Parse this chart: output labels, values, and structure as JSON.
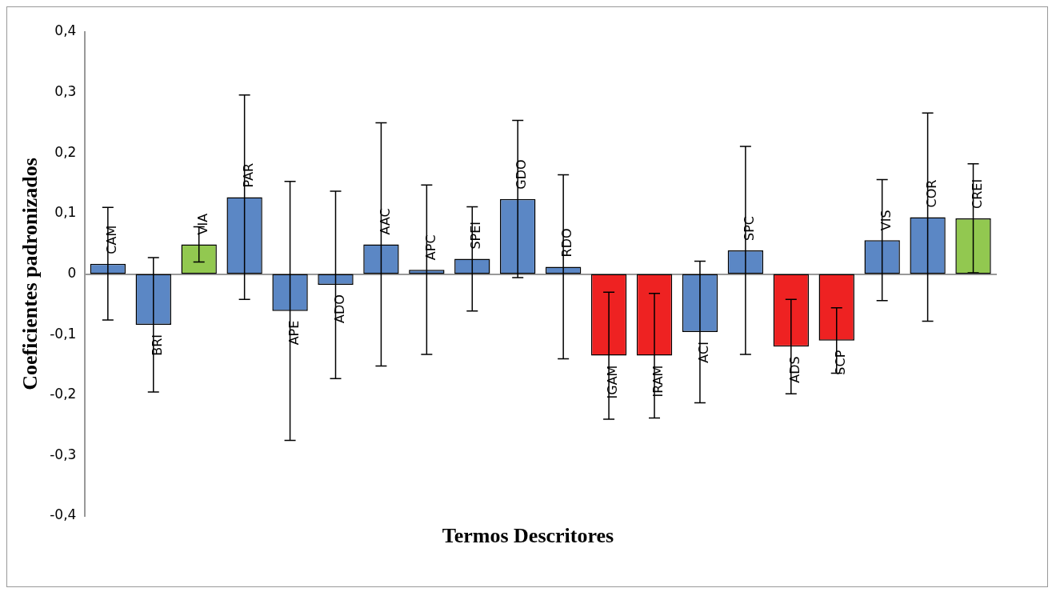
{
  "chart_data": {
    "type": "bar",
    "xlabel": "Termos Descritores",
    "ylabel": "Coeficientes padronizados",
    "categories": [
      "CAM",
      "BRI",
      "VIA",
      "PAR",
      "APE",
      "ADO",
      "AAC",
      "APC",
      "SPEI",
      "GDO",
      "RDO",
      "IGAM",
      "IRAM",
      "ACI",
      "SPC",
      "ADS",
      "SCP",
      "VIS",
      "COR",
      "CREI"
    ],
    "values": [
      0.017,
      -0.084,
      0.049,
      0.127,
      -0.061,
      -0.018,
      0.049,
      0.007,
      0.025,
      0.124,
      0.012,
      -0.135,
      -0.135,
      -0.096,
      0.039,
      -0.12,
      -0.11,
      0.056,
      0.094,
      0.092
    ],
    "errors": [
      0.093,
      0.111,
      0.029,
      0.169,
      0.214,
      0.155,
      0.201,
      0.14,
      0.086,
      0.13,
      0.152,
      0.105,
      0.103,
      0.117,
      0.172,
      0.078,
      0.054,
      0.1,
      0.172,
      0.09
    ],
    "colors": [
      "#5b87c5",
      "#5b87c5",
      "#92c850",
      "#5b87c5",
      "#5b87c5",
      "#5b87c5",
      "#5b87c5",
      "#5b87c5",
      "#5b87c5",
      "#5b87c5",
      "#5b87c5",
      "#ee2222",
      "#ee2222",
      "#5b87c5",
      "#5b87c5",
      "#ee2222",
      "#ee2222",
      "#5b87c5",
      "#5b87c5",
      "#92c850"
    ],
    "ylim": [
      -0.4,
      0.4
    ],
    "yticks": [
      {
        "value": -0.4,
        "label": "-0,4"
      },
      {
        "value": -0.3,
        "label": "-0,3"
      },
      {
        "value": -0.2,
        "label": "-0,2"
      },
      {
        "value": -0.1,
        "label": "-0,1"
      },
      0,
      {
        "value": 0.1,
        "label": "0,1"
      },
      {
        "value": 0.2,
        "label": "0,2"
      },
      {
        "value": 0.3,
        "label": "0,3"
      },
      {
        "value": 0.4,
        "label": "0,4"
      }
    ],
    "grid": false,
    "legend": false
  }
}
